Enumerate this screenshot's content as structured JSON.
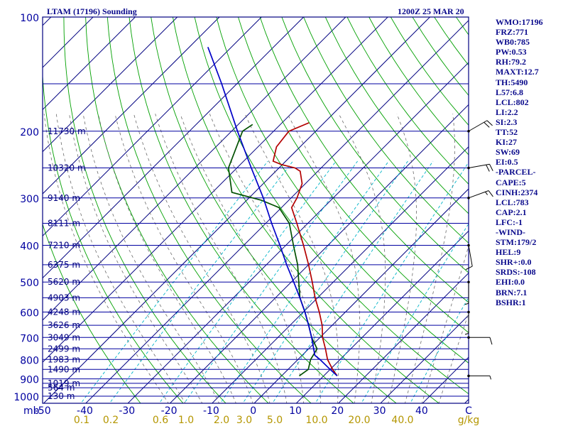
{
  "header": {
    "station": "LTAM (17196) Sounding",
    "time": "1200Z 25 MAR 20"
  },
  "indices": [
    "WMO:17196",
    "FRZ:771",
    "WB0:785",
    "PW:0.53",
    "RH:79.2",
    "MAXT:12.7",
    "TH:5490",
    "L57:6.8",
    "LCL:802",
    "LI:2.2",
    "SI:2.3",
    "TT:52",
    "KI:27",
    "SW:69",
    "EI:0.5",
    "-PARCEL-",
    "CAPE:5",
    "CINH:2374",
    "LCL:783",
    "CAP:2.1",
    "LFC:-1",
    "-WIND-",
    "STM:179/2",
    "HEL:9",
    "SHR+:0.0",
    "SRDS:-108",
    "EHI:0.0",
    "BRN:7.1",
    "BSHR:1"
  ],
  "colors": {
    "frame": "#000080",
    "isobar": "#0000a0",
    "isotherm": "#000080",
    "dry_adiabat": "#00a000",
    "moist_adiabat": "#6a6a6a",
    "mixing_ratio": "#00b4c8",
    "temperature": "#b40000",
    "dewpoint": "#005000",
    "parcel": "#0000c8",
    "axis_text": "#0000a0",
    "mixing_text": "#b49600",
    "height_text": "#000080",
    "wind": "#000000"
  },
  "chart_data": {
    "type": "skew-t log-p sounding",
    "title": "LTAM (17196) Sounding",
    "time_label": "1200Z 25 MAR 20",
    "pressure_unit": "mb",
    "pressure_range": [
      1050,
      100
    ],
    "pressure_ticks": [
      100,
      200,
      300,
      400,
      500,
      600,
      700,
      800,
      900,
      1000
    ],
    "isobars": [
      100,
      150,
      200,
      250,
      300,
      350,
      400,
      450,
      500,
      550,
      600,
      650,
      700,
      750,
      800,
      850,
      900,
      925,
      950,
      1000
    ],
    "temperature_ticks": [
      -50,
      -40,
      -30,
      -20,
      -10,
      0,
      10,
      20,
      30,
      40
    ],
    "temperature_unit_label": "C",
    "mixing_ratio_unit": "g/kg",
    "mixing_ratio_values": [
      0.1,
      0.2,
      0.6,
      1.0,
      2.0,
      3.0,
      5.0,
      10.0,
      20.0,
      40.0
    ],
    "mixing_ratio_labels": [
      "0.1",
      "0.2",
      "0.6",
      "1.0",
      "2.0",
      "3.0",
      "5.0",
      "10.0",
      "20.0",
      "40.0"
    ],
    "height_labels": [
      {
        "p": 1000,
        "text": "130 m"
      },
      {
        "p": 950,
        "text": "564 m"
      },
      {
        "p": 925,
        "text": "1019 m"
      },
      {
        "p": 850,
        "text": "1490 m"
      },
      {
        "p": 800,
        "text": "1983 m"
      },
      {
        "p": 750,
        "text": "2499 m"
      },
      {
        "p": 700,
        "text": "3049 m"
      },
      {
        "p": 650,
        "text": "3626 m"
      },
      {
        "p": 600,
        "text": "4248 m"
      },
      {
        "p": 550,
        "text": "4903 m"
      },
      {
        "p": 500,
        "text": "5620 m"
      },
      {
        "p": 450,
        "text": "6375 m"
      },
      {
        "p": 400,
        "text": "7210 m"
      },
      {
        "p": 350,
        "text": "8111 m"
      },
      {
        "p": 300,
        "text": "9140 m"
      },
      {
        "p": 250,
        "text": "10320 m"
      },
      {
        "p": 200,
        "text": "11730 m"
      }
    ],
    "series": [
      {
        "name": "temperature",
        "points": [
          [
            884,
            13.2
          ],
          [
            850,
            10.6
          ],
          [
            800,
            7.0
          ],
          [
            750,
            4.0
          ],
          [
            700,
            0.6
          ],
          [
            650,
            -2.4
          ],
          [
            600,
            -6.2
          ],
          [
            550,
            -10.6
          ],
          [
            500,
            -15.0
          ],
          [
            450,
            -20.0
          ],
          [
            400,
            -25.8
          ],
          [
            350,
            -32.6
          ],
          [
            318,
            -37.6
          ],
          [
            300,
            -38.6
          ],
          [
            275,
            -40.8
          ],
          [
            255,
            -44.2
          ],
          [
            250,
            -46.2
          ],
          [
            245,
            -50.2
          ],
          [
            240,
            -53.0
          ],
          [
            220,
            -55.6
          ],
          [
            200,
            -56.4
          ],
          [
            190,
            -53.6
          ]
        ]
      },
      {
        "name": "dewpoint",
        "points": [
          [
            884,
            4.2
          ],
          [
            850,
            4.8
          ],
          [
            800,
            3.0
          ],
          [
            750,
            2.0
          ],
          [
            700,
            -2.0
          ],
          [
            650,
            -5.6
          ],
          [
            600,
            -9.6
          ],
          [
            550,
            -14.2
          ],
          [
            500,
            -18.2
          ],
          [
            450,
            -22.6
          ],
          [
            400,
            -28.2
          ],
          [
            350,
            -34.4
          ],
          [
            318,
            -40.6
          ],
          [
            304,
            -46.6
          ],
          [
            290,
            -55.4
          ],
          [
            265,
            -59.4
          ],
          [
            250,
            -62.0
          ],
          [
            200,
            -67.4
          ],
          [
            192,
            -66.6
          ]
        ]
      },
      {
        "name": "parcel",
        "points": [
          [
            884,
            13.2
          ],
          [
            850,
            10.0
          ],
          [
            800,
            5.2
          ],
          [
            780,
            3.0
          ],
          [
            750,
            1.2
          ],
          [
            700,
            -2.0
          ],
          [
            650,
            -5.6
          ],
          [
            600,
            -9.6
          ],
          [
            550,
            -14.2
          ],
          [
            500,
            -19.4
          ],
          [
            450,
            -25.2
          ],
          [
            400,
            -31.4
          ],
          [
            350,
            -38.6
          ],
          [
            300,
            -46.6
          ],
          [
            250,
            -56.6
          ],
          [
            200,
            -68.6
          ],
          [
            150,
            -83.6
          ],
          [
            120,
            -95.6
          ]
        ]
      }
    ],
    "wind_barbs": [
      {
        "p": 884,
        "direction": 90,
        "speed_kt": 5
      },
      {
        "p": 700,
        "direction": 90,
        "speed_kt": 10
      },
      {
        "p": 600,
        "direction": 180,
        "speed_kt": 5
      },
      {
        "p": 500,
        "direction": 180,
        "speed_kt": 5
      },
      {
        "p": 400,
        "direction": 170,
        "speed_kt": 10
      },
      {
        "p": 300,
        "direction": 70,
        "speed_kt": 15
      },
      {
        "p": 250,
        "direction": 80,
        "speed_kt": 20
      },
      {
        "p": 200,
        "direction": 60,
        "speed_kt": 20
      }
    ]
  }
}
